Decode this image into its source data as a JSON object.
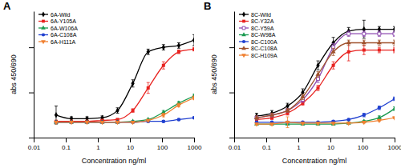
{
  "chart_data": [
    {
      "type": "line",
      "title": "A",
      "x_label": "Concentration ng/ml",
      "y_label": "abs 450/690",
      "log": "x",
      "grid": false,
      "legend": "top-left",
      "tick_labels": "x",
      "x": [
        0.05,
        0.15,
        0.46,
        1.37,
        4.1,
        12.3,
        37,
        111,
        333,
        1000
      ],
      "xlim": [
        0.01,
        1000
      ],
      "xticks": [
        0.01,
        0.1,
        1,
        10,
        100,
        1000
      ],
      "ylim": [
        0,
        1.4
      ],
      "yticks": [
        0,
        0.5,
        1
      ],
      "series": [
        {
          "name": "6A-Wild",
          "color": "#000000",
          "marker": "diamond",
          "values": [
            0.25,
            0.21,
            0.21,
            0.22,
            0.3,
            0.6,
            0.95,
            1.0,
            1.02,
            1.08
          ],
          "errors": [
            0.1,
            0.02,
            0.02,
            0.02,
            0.03,
            0.04,
            0.03,
            0.03,
            0.03,
            0.06
          ]
        },
        {
          "name": "6A-Y105A",
          "color": "#e8221f",
          "marker": "square",
          "values": [
            0.18,
            0.18,
            0.18,
            0.19,
            0.2,
            0.3,
            0.55,
            0.8,
            0.95,
            0.98
          ],
          "errors": [
            0.01,
            0.01,
            0.01,
            0.01,
            0.01,
            0.02,
            0.06,
            0.04,
            0.02,
            0.02
          ]
        },
        {
          "name": "6A-W106A",
          "color": "#1a9a50",
          "marker": "triangle",
          "values": [
            0.17,
            0.17,
            0.17,
            0.17,
            0.17,
            0.18,
            0.2,
            0.28,
            0.38,
            0.46
          ],
          "errors": [
            0.01,
            0.01,
            0.01,
            0.01,
            0.01,
            0.01,
            0.01,
            0.02,
            0.02,
            0.02
          ]
        },
        {
          "name": "6A-C108A",
          "color": "#2040d0",
          "marker": "circle",
          "values": [
            0.17,
            0.17,
            0.17,
            0.17,
            0.17,
            0.17,
            0.18,
            0.18,
            0.2,
            0.22
          ],
          "errors": [
            0.01,
            0.01,
            0.01,
            0.01,
            0.01,
            0.01,
            0.01,
            0.01,
            0.01,
            0.01
          ]
        },
        {
          "name": "6A-H111A",
          "color": "#f08030",
          "marker": "triangle-down",
          "values": [
            0.17,
            0.17,
            0.17,
            0.17,
            0.17,
            0.17,
            0.19,
            0.25,
            0.36,
            0.44
          ],
          "errors": [
            0.01,
            0.01,
            0.01,
            0.01,
            0.01,
            0.01,
            0.01,
            0.02,
            0.02,
            0.02
          ]
        }
      ]
    },
    {
      "type": "line",
      "title": "B",
      "x_label": "Concentration ng/ml",
      "y_label": "abs 450/690",
      "log": "x",
      "grid": false,
      "legend": "top-left",
      "tick_labels": "x",
      "x": [
        0.05,
        0.15,
        0.46,
        1.37,
        4.1,
        12.3,
        37,
        111,
        333,
        1000
      ],
      "xlim": [
        0.01,
        1000
      ],
      "xticks": [
        0.01,
        0.1,
        1,
        10,
        100,
        1000
      ],
      "ylim": [
        0,
        1.4
      ],
      "yticks": [
        0,
        0.5,
        1
      ],
      "series": [
        {
          "name": "8C-Wild",
          "color": "#000000",
          "marker": "diamond",
          "values": [
            0.24,
            0.27,
            0.35,
            0.5,
            0.8,
            1.05,
            1.18,
            1.2,
            1.2,
            1.2
          ],
          "errors": [
            0.03,
            0.03,
            0.03,
            0.04,
            0.05,
            0.06,
            0.04,
            0.1,
            0.03,
            0.03
          ]
        },
        {
          "name": "8C-Y32A",
          "color": "#e8221f",
          "marker": "square",
          "values": [
            0.2,
            0.22,
            0.27,
            0.38,
            0.55,
            0.8,
            0.95,
            0.97,
            0.97,
            0.97
          ],
          "errors": [
            0.02,
            0.02,
            0.02,
            0.02,
            0.03,
            0.04,
            0.1,
            0.05,
            0.03,
            0.03
          ]
        },
        {
          "name": "8C-Y59A",
          "color": "#8e4ab0",
          "marker": "square-open",
          "values": [
            0.22,
            0.25,
            0.3,
            0.42,
            0.65,
            1.0,
            1.15,
            1.15,
            1.15,
            1.15
          ],
          "errors": [
            0.02,
            0.02,
            0.02,
            0.03,
            0.04,
            0.04,
            0.03,
            0.03,
            0.03,
            0.03
          ]
        },
        {
          "name": "8C-W98A",
          "color": "#1a9a50",
          "marker": "triangle",
          "values": [
            0.15,
            0.15,
            0.15,
            0.15,
            0.15,
            0.15,
            0.16,
            0.18,
            0.22,
            0.32
          ],
          "errors": [
            0.01,
            0.01,
            0.01,
            0.01,
            0.01,
            0.01,
            0.01,
            0.01,
            0.02,
            0.02
          ]
        },
        {
          "name": "8C-C100A",
          "color": "#2040d0",
          "marker": "circle",
          "values": [
            0.17,
            0.17,
            0.17,
            0.17,
            0.17,
            0.18,
            0.2,
            0.25,
            0.33,
            0.43
          ],
          "errors": [
            0.01,
            0.01,
            0.01,
            0.01,
            0.01,
            0.01,
            0.01,
            0.02,
            0.02,
            0.02
          ]
        },
        {
          "name": "8C-C108A",
          "color": "#a0522d",
          "marker": "triangle",
          "values": [
            0.22,
            0.25,
            0.3,
            0.45,
            0.7,
            0.95,
            1.05,
            1.05,
            1.05,
            1.05
          ],
          "errors": [
            0.02,
            0.02,
            0.02,
            0.03,
            0.03,
            0.04,
            0.03,
            0.03,
            0.03,
            0.03
          ]
        },
        {
          "name": "8C-H109A",
          "color": "#f08030",
          "marker": "triangle-down",
          "values": [
            0.15,
            0.15,
            0.17,
            0.16,
            0.16,
            0.16,
            0.16,
            0.17,
            0.19,
            0.22
          ],
          "errors": [
            0.01,
            0.01,
            0.06,
            0.01,
            0.01,
            0.01,
            0.01,
            0.01,
            0.01,
            0.01
          ]
        }
      ]
    }
  ]
}
